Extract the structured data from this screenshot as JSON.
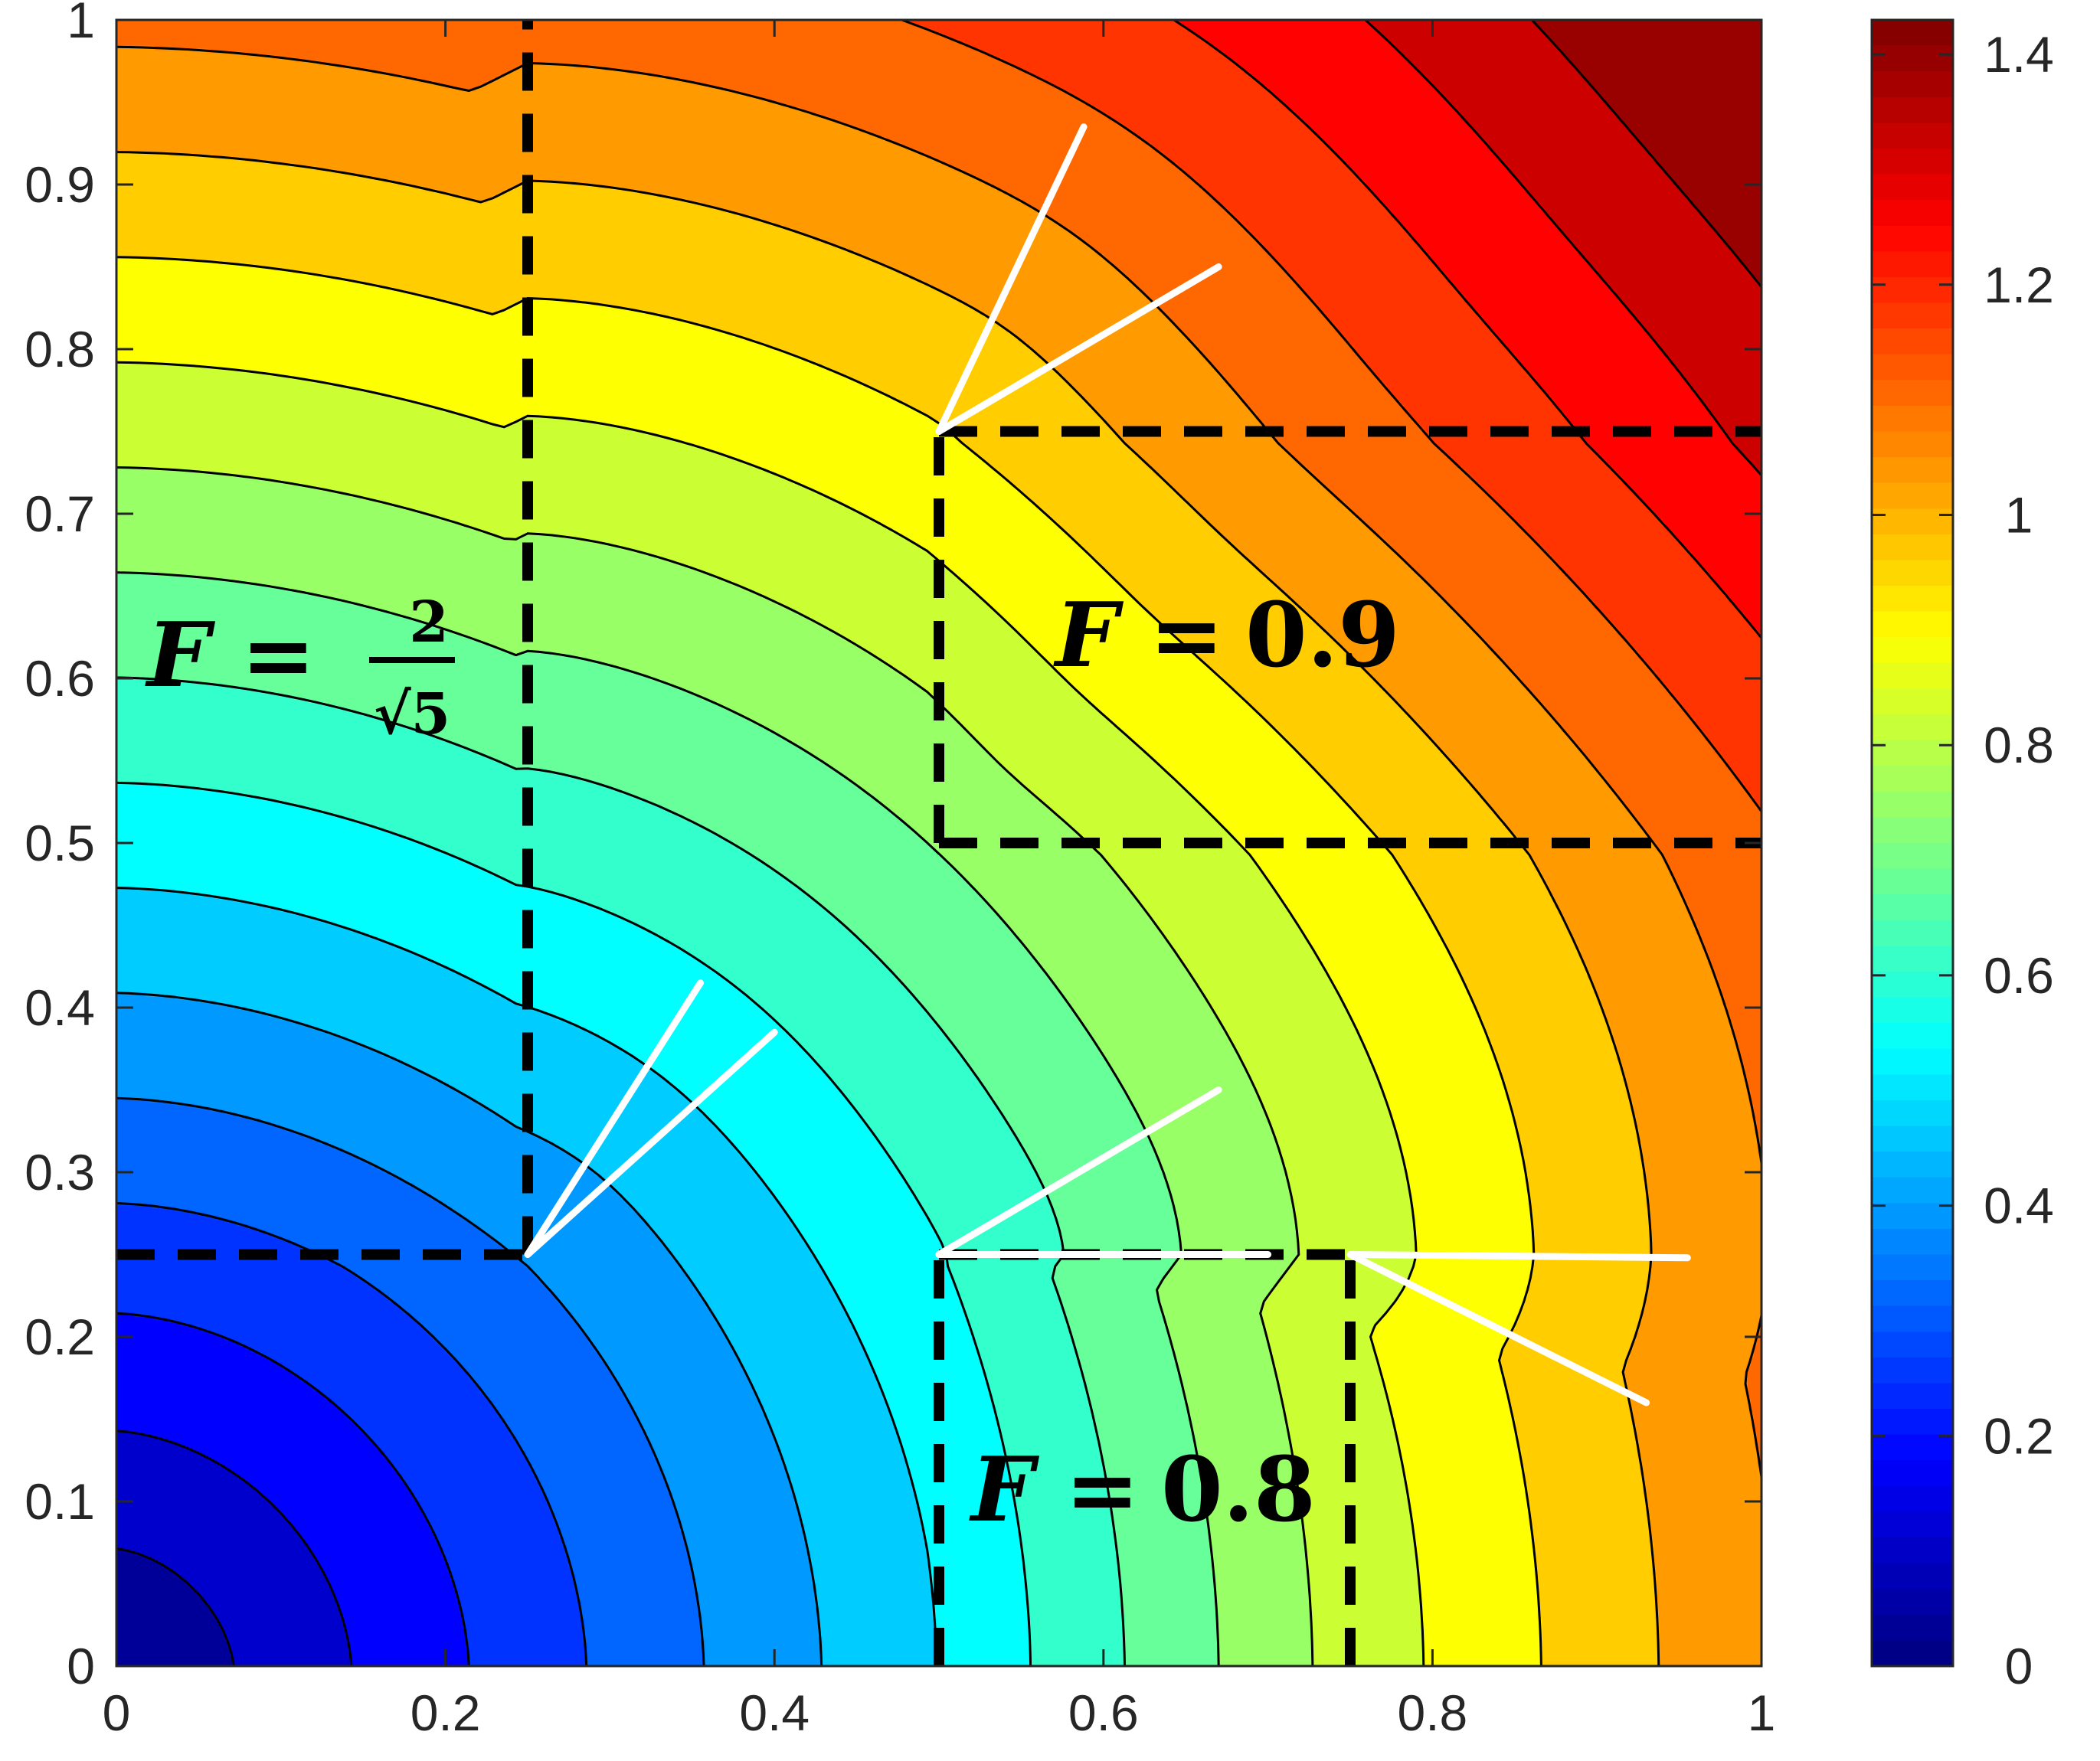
{
  "chart_data": {
    "type": "heatmap",
    "subtype": "filled-contour",
    "title": "",
    "xlabel": "",
    "ylabel": "",
    "xlim": [
      0,
      1
    ],
    "ylim": [
      0,
      1
    ],
    "x_ticks": [
      "0",
      "0.2",
      "0.4",
      "0.6",
      "0.8",
      "1"
    ],
    "y_ticks": [
      "0",
      "0.1",
      "0.2",
      "0.3",
      "0.4",
      "0.5",
      "0.6",
      "0.7",
      "0.8",
      "0.9",
      "1"
    ],
    "colorbar": {
      "colormap": "jet",
      "range": [
        0,
        1.43
      ],
      "ticks": [
        "0",
        "0.2",
        "0.4",
        "0.6",
        "0.8",
        "1",
        "1.2",
        "1.4"
      ]
    },
    "contour_levels": [
      0.0714,
      0.1429,
      0.2143,
      0.2857,
      0.3571,
      0.4286,
      0.5,
      0.5714,
      0.6429,
      0.7143,
      0.7857,
      0.8571,
      0.9286,
      1.0,
      1.0714,
      1.1429,
      1.2143,
      1.2857,
      1.3571
    ],
    "regions": [
      {
        "label_prefix": "F =",
        "label_value": "",
        "fraction_num": "2",
        "fraction_den": "√5",
        "speed": 0.894,
        "x": [
          0,
          0.25
        ],
        "y": [
          0.25,
          1
        ]
      },
      {
        "label_prefix": "F =",
        "label_value": "0.9",
        "speed": 0.9,
        "x": [
          0.5,
          1
        ],
        "y": [
          0.5,
          0.75
        ]
      },
      {
        "label_prefix": "F =",
        "label_value": "0.8",
        "speed": 0.8,
        "x": [
          0.5,
          0.75
        ],
        "y": [
          0,
          0.25
        ]
      }
    ],
    "white_ray_fans": [
      {
        "apex": [
          0.25,
          0.25
        ],
        "rays_to": [
          [
            0.355,
            0.415
          ],
          [
            0.4,
            0.385
          ]
        ]
      },
      {
        "apex": [
          0.5,
          0.75
        ],
        "rays_to": [
          [
            0.588,
            0.935
          ],
          [
            0.67,
            0.85
          ]
        ]
      },
      {
        "apex": [
          0.5,
          0.25
        ],
        "rays_to": [
          [
            0.67,
            0.35
          ],
          [
            0.7,
            0.25
          ]
        ]
      },
      {
        "apex": [
          0.75,
          0.25
        ],
        "rays_to": [
          [
            0.955,
            0.248
          ],
          [
            0.93,
            0.16
          ]
        ]
      }
    ],
    "grid": false,
    "legend": "none"
  }
}
